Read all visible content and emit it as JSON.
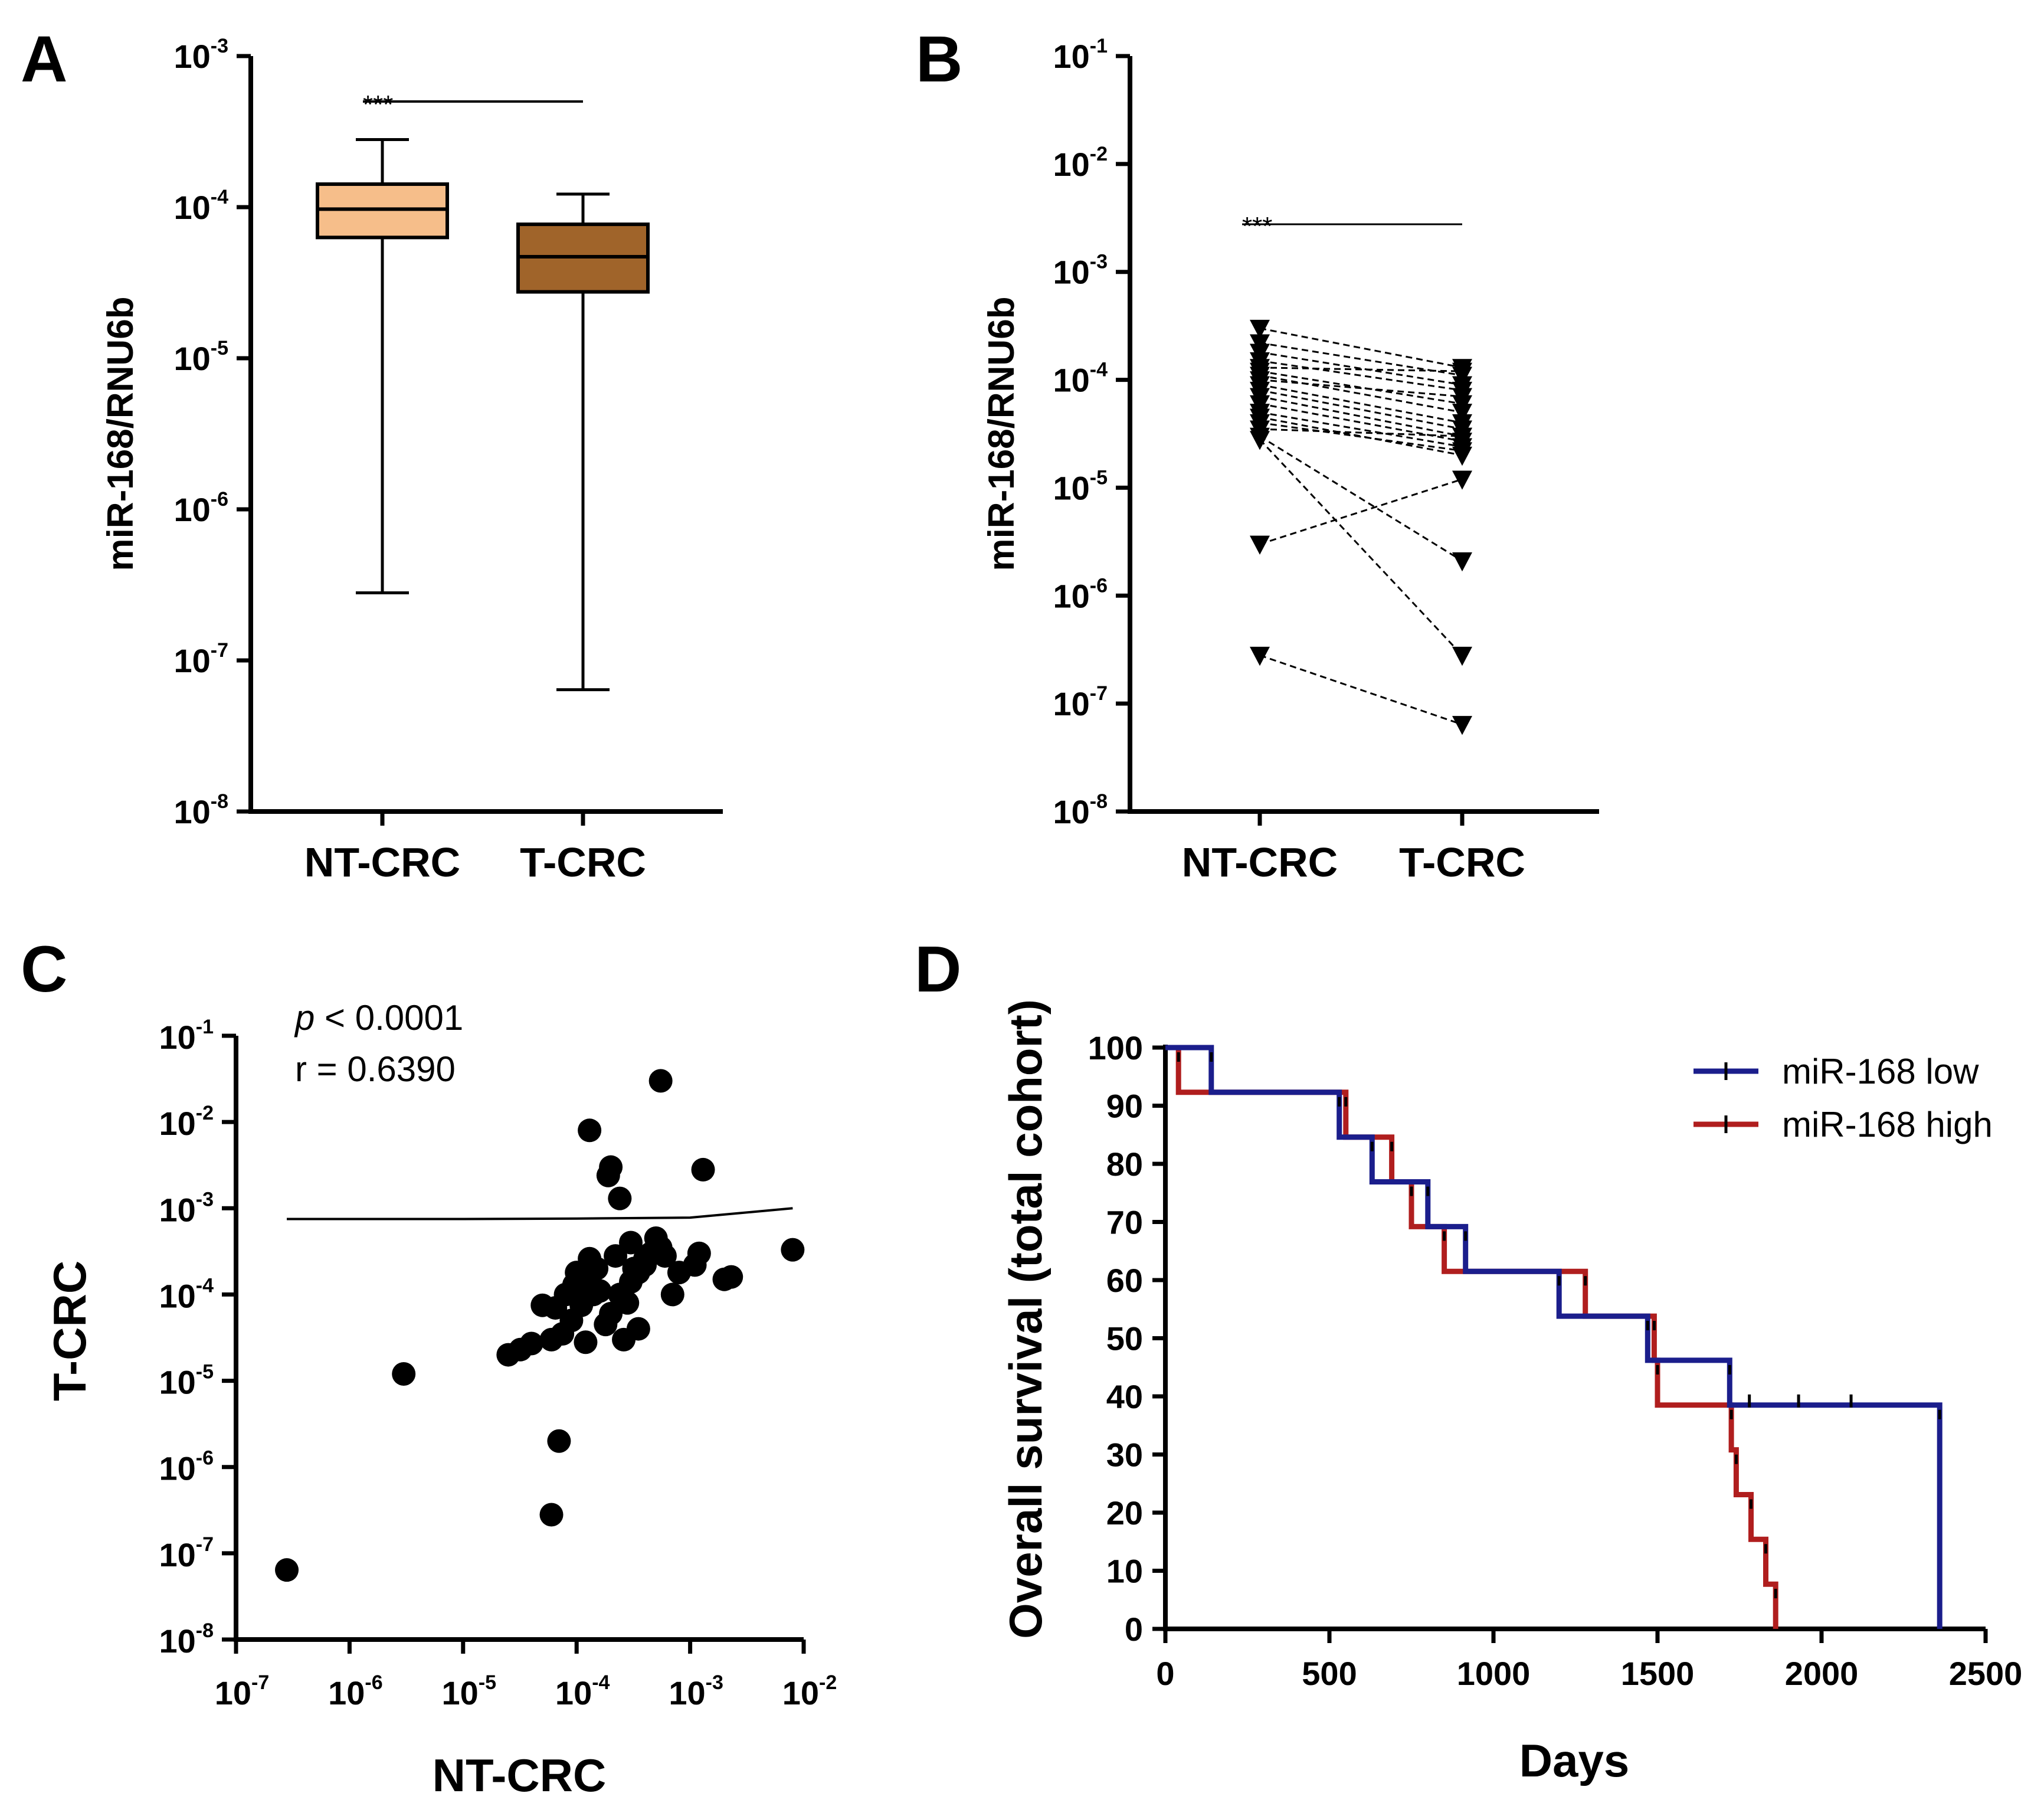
{
  "panels": {
    "A": "A",
    "B": "B",
    "C": "C",
    "D": "D"
  },
  "colors": {
    "nt_box": "#F6BE8A",
    "t_box": "#A0642A",
    "km_low": "#1B1E8C",
    "km_high": "#B01E1E",
    "ink": "#000000"
  },
  "chart_data": [
    {
      "id": "A",
      "type": "box",
      "title": "",
      "xlabel": "",
      "ylabel": "miR-168/RNU6b",
      "yscale": "log",
      "ylim_exp": [
        -8,
        -3
      ],
      "ytick_exponents": [
        "-3",
        "-4",
        "-5",
        "-6",
        "-7",
        "-8"
      ],
      "categories": [
        "NT-CRC",
        "T-CRC"
      ],
      "boxes": [
        {
          "category": "NT-CRC",
          "min": 2.8e-07,
          "q1": 6.3e-05,
          "median": 9.7e-05,
          "q3": 0.000142,
          "max": 0.00028
        },
        {
          "category": "T-CRC",
          "min": 6.4e-08,
          "q1": 2.75e-05,
          "median": 4.7e-05,
          "q3": 7.7e-05,
          "max": 0.000122
        }
      ],
      "significance": "***"
    },
    {
      "id": "B",
      "type": "paired",
      "title": "",
      "xlabel": "",
      "ylabel": "miR-168/RNU6b",
      "yscale": "log",
      "ylim_exp": [
        -8,
        -1
      ],
      "ytick_exponents": [
        "-1",
        "-2",
        "-3",
        "-4",
        "-5",
        "-6",
        "-7",
        "-8"
      ],
      "categories": [
        "NT-CRC",
        "T-CRC"
      ],
      "pairs": [
        [
          0.0003,
          0.00013
        ],
        [
          0.00022,
          0.00011
        ],
        [
          0.00018,
          9e-05
        ],
        [
          0.00015,
          8e-05
        ],
        [
          0.00013,
          0.00012
        ],
        [
          0.00012,
          6e-05
        ],
        [
          0.00011,
          5e-05
        ],
        [
          0.0001,
          7e-05
        ],
        [
          9e-05,
          4e-05
        ],
        [
          8e-05,
          3.5e-05
        ],
        [
          7e-05,
          3e-05
        ],
        [
          6e-05,
          2.7e-05
        ],
        [
          5e-05,
          2.4e-05
        ],
        [
          4.5e-05,
          2e-05
        ],
        [
          4e-05,
          2.2e-05
        ],
        [
          3.5e-05,
          3e-05
        ],
        [
          3e-05,
          2.1e-06
        ],
        [
          2.8e-05,
          2.8e-07
        ],
        [
          3e-06,
          1.2e-05
        ],
        [
          2.8e-07,
          6.4e-08
        ]
      ],
      "significance": "***"
    },
    {
      "id": "C",
      "type": "scatter",
      "title": "",
      "xlabel": "NT-CRC",
      "ylabel": "T-CRC",
      "xscale": "log",
      "yscale": "log",
      "xlim_exp": [
        -7,
        -2
      ],
      "ylim_exp": [
        -8,
        -1
      ],
      "xtick_exponents": [
        "-7",
        "-6",
        "-5",
        "-4",
        "-3",
        "-2"
      ],
      "ytick_exponents": [
        "-1",
        "-2",
        "-3",
        "-4",
        "-5",
        "-6",
        "-7",
        "-8"
      ],
      "annotation": {
        "p_symbol": "p",
        "p_text": " < 0.0001",
        "r_text": "r = 0.6390"
      },
      "fit_line": [
        [
          2.8e-07,
          0.00075
        ],
        [
          1e-05,
          0.00075
        ],
        [
          0.0001,
          0.00076
        ],
        [
          0.001,
          0.00078
        ],
        [
          0.008,
          0.001
        ]
      ],
      "points": [
        [
          2.8e-07,
          6.4e-08
        ],
        [
          3e-06,
          1.2e-05
        ],
        [
          6e-05,
          2.8e-07
        ],
        [
          7e-05,
          2e-06
        ],
        [
          0.00013,
          0.008
        ],
        [
          0.00055,
          0.03
        ],
        [
          0.0013,
          0.0028
        ],
        [
          0.0002,
          0.003
        ],
        [
          0.00019,
          0.0024
        ],
        [
          0.00024,
          0.0013
        ],
        [
          0.008,
          0.00033
        ],
        [
          0.0023,
          0.00016
        ],
        [
          0.002,
          0.00015
        ],
        [
          0.0012,
          0.0003
        ],
        [
          0.0011,
          0.00022
        ],
        [
          0.0008,
          0.00018
        ],
        [
          0.0007,
          0.0001
        ],
        [
          0.0006,
          0.00028
        ],
        [
          0.0005,
          0.00045
        ],
        [
          0.00045,
          0.0003
        ],
        [
          0.0004,
          0.00022
        ],
        [
          0.00035,
          0.00018
        ],
        [
          0.00035,
          4e-05
        ],
        [
          0.0003,
          0.0004
        ],
        [
          0.0003,
          0.00014
        ],
        [
          0.00028,
          8e-05
        ],
        [
          0.00026,
          3e-05
        ],
        [
          0.00024,
          0.0001
        ],
        [
          0.00022,
          0.00028
        ],
        [
          0.0002,
          6e-05
        ],
        [
          0.00018,
          4.5e-05
        ],
        [
          0.00016,
          0.00011
        ],
        [
          0.00015,
          0.0002
        ],
        [
          0.00013,
          0.00026
        ],
        [
          0.00012,
          0.00015
        ],
        [
          0.00012,
          2.8e-05
        ],
        [
          0.00011,
          7.5e-05
        ],
        [
          0.0001,
          0.00018
        ],
        [
          9e-05,
          5e-05
        ],
        [
          8e-05,
          0.0001
        ],
        [
          7.5e-05,
          3.5e-05
        ],
        [
          6.5e-05,
          7e-05
        ],
        [
          6e-05,
          3e-05
        ],
        [
          5e-05,
          7.5e-05
        ],
        [
          4e-05,
          2.7e-05
        ],
        [
          3.2e-05,
          2.3e-05
        ],
        [
          2.5e-05,
          2e-05
        ],
        [
          0.0004,
          0.00026
        ],
        [
          0.00055,
          0.00035
        ],
        [
          0.00032,
          0.0002
        ],
        [
          0.00014,
          0.0001
        ],
        [
          9.5e-05,
          0.00013
        ]
      ]
    },
    {
      "id": "D",
      "type": "survival",
      "title": "",
      "xlabel": "Days",
      "ylabel": "Overall survival (total cohort)",
      "xlim": [
        0,
        2500
      ],
      "ylim": [
        0,
        100
      ],
      "xticks": [
        0,
        500,
        1000,
        1500,
        2000,
        2500
      ],
      "yticks": [
        0,
        10,
        20,
        30,
        40,
        50,
        60,
        70,
        80,
        90,
        100
      ],
      "series": [
        {
          "name": "miR-168 low",
          "color": "#1B1E8C",
          "steps": [
            [
              0,
              100
            ],
            [
              140,
              92.3
            ],
            [
              530,
              84.6
            ],
            [
              630,
              76.9
            ],
            [
              800,
              69.2
            ],
            [
              915,
              61.5
            ],
            [
              1200,
              53.8
            ],
            [
              1470,
              46.2
            ],
            [
              1720,
              38.5
            ],
            [
              2360,
              0
            ]
          ],
          "censored": [
            [
              1780,
              38.5
            ],
            [
              1930,
              38.5
            ],
            [
              2090,
              38.5
            ]
          ]
        },
        {
          "name": "miR-168 high",
          "color": "#B01E1E",
          "steps": [
            [
              0,
              100
            ],
            [
              40,
              92.3
            ],
            [
              550,
              84.6
            ],
            [
              690,
              76.9
            ],
            [
              750,
              69.2
            ],
            [
              850,
              61.5
            ],
            [
              1280,
              53.8
            ],
            [
              1490,
              46.2
            ],
            [
              1500,
              38.5
            ],
            [
              1725,
              30.8
            ],
            [
              1740,
              23.1
            ],
            [
              1785,
              15.4
            ],
            [
              1830,
              7.7
            ],
            [
              1860,
              0
            ]
          ],
          "censored": []
        }
      ],
      "legend_position": "top-right"
    }
  ]
}
